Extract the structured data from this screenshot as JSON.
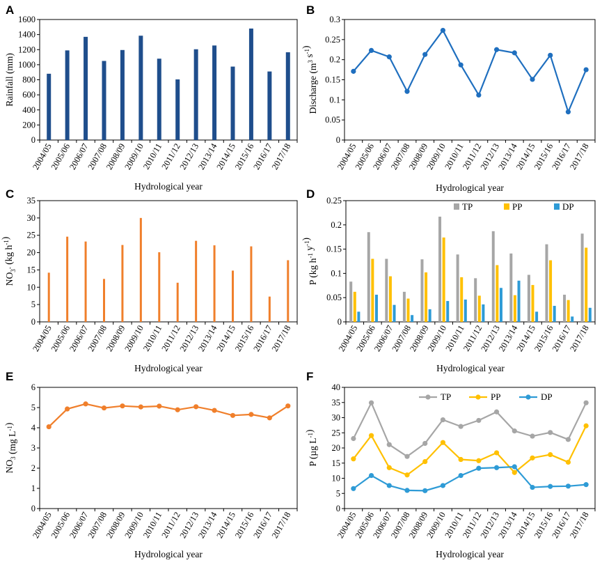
{
  "colors": {
    "rainfall": "#1f4e8c",
    "discharge": "#1f6fbf",
    "no3load": "#f07f2b",
    "tp": "#a6a6a6",
    "pp": "#ffc000",
    "dp": "#2e9bd6",
    "no3conc": "#f07f2b"
  },
  "chart_data": [
    {
      "panel": "A",
      "type": "bar",
      "categories": [
        "2004/05",
        "2005/06",
        "2006/07",
        "2007/08",
        "2008/09",
        "2009/10",
        "2010/11",
        "2011/12",
        "2012/13",
        "2013/14",
        "2014/15",
        "2015/16",
        "2016/17",
        "2017/18"
      ],
      "series": [
        {
          "name": "Rainfall",
          "color": "#1f4e8c",
          "values": [
            880,
            1190,
            1370,
            1050,
            1195,
            1385,
            1080,
            805,
            1205,
            1255,
            975,
            1480,
            910,
            1165
          ]
        }
      ],
      "xlabel": "Hydrological year",
      "ylabel": "Rainfall (mm)",
      "ylim": [
        0,
        1600
      ],
      "yticks": [
        "0",
        "200",
        "400",
        "600",
        "800",
        "1000",
        "1200",
        "1400",
        "1600"
      ]
    },
    {
      "panel": "B",
      "type": "line",
      "categories": [
        "2004/05",
        "2005/06",
        "2006/07",
        "2007/08",
        "2008/09",
        "2009/10",
        "2010/11",
        "2011/12",
        "2012/13",
        "2013/14",
        "2014/15",
        "2015/16",
        "2016/17",
        "2017/18"
      ],
      "series": [
        {
          "name": "Discharge",
          "color": "#1f6fbf",
          "values": [
            0.171,
            0.223,
            0.207,
            0.121,
            0.213,
            0.273,
            0.187,
            0.112,
            0.225,
            0.217,
            0.151,
            0.211,
            0.07,
            0.175
          ]
        }
      ],
      "xlabel": "Hydrological year",
      "ylabel": "Discharge (m3 s-1)",
      "ylim": [
        0,
        0.3
      ],
      "yticks": [
        "0",
        "0.05",
        "0.1",
        "0.15",
        "0.2",
        "0.25",
        "0.3"
      ]
    },
    {
      "panel": "C",
      "type": "bar",
      "categories": [
        "2004/05",
        "2005/06",
        "2006/07",
        "2007/08",
        "2008/09",
        "2009/10",
        "2010/11",
        "2011/12",
        "2012/13",
        "2013/14",
        "2014/15",
        "2015/16",
        "2016/17",
        "2017/18"
      ],
      "series": [
        {
          "name": "NO3",
          "color": "#f07f2b",
          "values": [
            14.2,
            24.6,
            23.2,
            12.4,
            22.2,
            30.0,
            20.1,
            11.3,
            23.4,
            22.1,
            14.8,
            21.8,
            7.3,
            17.8
          ]
        }
      ],
      "xlabel": "Hydrological year",
      "ylabel": "NO3 (kg h-1)",
      "ylim": [
        0,
        35
      ],
      "yticks": [
        "0",
        "5",
        "10",
        "15",
        "20",
        "25",
        "30",
        "35"
      ]
    },
    {
      "panel": "D",
      "type": "bar",
      "categories": [
        "2004/05",
        "2005/06",
        "2006/07",
        "2007/08",
        "2008/09",
        "2009/10",
        "2010/11",
        "2011/12",
        "2012/13",
        "2013/14",
        "2014/15",
        "2015/16",
        "2016/17",
        "2017/18"
      ],
      "series": [
        {
          "name": "TP",
          "color": "#a6a6a6",
          "values": [
            0.083,
            0.185,
            0.13,
            0.062,
            0.129,
            0.217,
            0.139,
            0.09,
            0.187,
            0.141,
            0.097,
            0.16,
            0.056,
            0.182
          ]
        },
        {
          "name": "PP",
          "color": "#ffc000",
          "values": [
            0.062,
            0.13,
            0.094,
            0.048,
            0.102,
            0.174,
            0.092,
            0.054,
            0.117,
            0.055,
            0.076,
            0.127,
            0.045,
            0.153
          ]
        },
        {
          "name": "DP",
          "color": "#2e9bd6",
          "values": [
            0.021,
            0.056,
            0.035,
            0.014,
            0.026,
            0.043,
            0.046,
            0.036,
            0.07,
            0.085,
            0.021,
            0.033,
            0.011,
            0.029
          ]
        }
      ],
      "xlabel": "Hydrological year",
      "ylabel": "P (kg h-1 y-1)",
      "ylim": [
        0,
        0.25
      ],
      "yticks": [
        "0",
        "0.05",
        "0.1",
        "0.15",
        "0.2",
        "0.25"
      ],
      "legend": [
        "TP",
        "PP",
        "DP"
      ]
    },
    {
      "panel": "E",
      "type": "line",
      "categories": [
        "2004/05",
        "2005/06",
        "2006/07",
        "2007/08",
        "2008/09",
        "2009/10",
        "2010/11",
        "2011/12",
        "2012/13",
        "2013/14",
        "2014/15",
        "2015/16",
        "2016/17",
        "2017/18"
      ],
      "series": [
        {
          "name": "NO3",
          "color": "#f07f2b",
          "values": [
            4.05,
            4.93,
            5.18,
            4.98,
            5.08,
            5.03,
            5.07,
            4.89,
            5.04,
            4.86,
            4.61,
            4.66,
            4.49,
            5.08
          ]
        }
      ],
      "xlabel": "Hydrological year",
      "ylabel": "NO3 (mg L-1)",
      "ylim": [
        0,
        6
      ],
      "yticks": [
        "0",
        "1",
        "2",
        "3",
        "4",
        "5",
        "6"
      ]
    },
    {
      "panel": "F",
      "type": "line",
      "categories": [
        "2004/05",
        "2005/06",
        "2006/07",
        "2007/08",
        "2008/09",
        "2009/10",
        "2010/11",
        "2011/12",
        "2012/13",
        "2013/14",
        "2014/15",
        "2015/16",
        "2016/17",
        "2017/18"
      ],
      "series": [
        {
          "name": "TP",
          "color": "#a6a6a6",
          "values": [
            23.1,
            34.9,
            21.1,
            17.2,
            21.5,
            29.3,
            27.1,
            29.1,
            31.9,
            25.6,
            23.9,
            25.1,
            22.8,
            34.9
          ]
        },
        {
          "name": "PP",
          "color": "#ffc000",
          "values": [
            16.4,
            24.1,
            13.5,
            11.1,
            15.5,
            21.8,
            16.2,
            15.8,
            18.4,
            11.9,
            16.7,
            17.8,
            15.3,
            27.3
          ]
        },
        {
          "name": "DP",
          "color": "#2e9bd6",
          "values": [
            6.6,
            10.9,
            7.6,
            6.0,
            5.9,
            7.6,
            10.9,
            13.3,
            13.5,
            13.8,
            7.0,
            7.3,
            7.4,
            7.9
          ]
        }
      ],
      "xlabel": "Hydrological year",
      "ylabel": "P (µg L-1)",
      "ylim": [
        0,
        40
      ],
      "yticks": [
        "0",
        "5",
        "10",
        "15",
        "20",
        "25",
        "30",
        "35",
        "40"
      ],
      "legend": [
        "TP",
        "PP",
        "DP"
      ]
    }
  ]
}
